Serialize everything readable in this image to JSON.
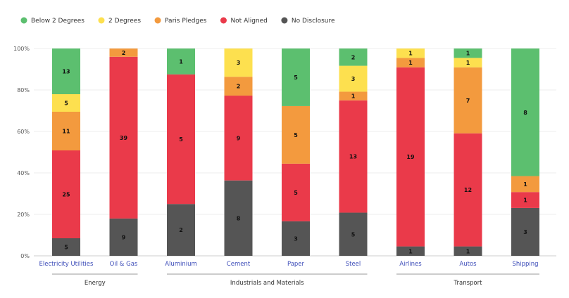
{
  "chart_data": {
    "type": "bar",
    "stacked": true,
    "normalized": true,
    "title": "",
    "xlabel": "",
    "ylabel": "",
    "ylim": [
      0,
      100
    ],
    "yticks": [
      "0%",
      "20%",
      "40%",
      "60%",
      "80%",
      "100%"
    ],
    "legend_position": "top-left",
    "categories": [
      "Electricity Utilities",
      "Oil & Gas",
      "Aluminium",
      "Cement",
      "Paper",
      "Steel",
      "Airlines",
      "Autos",
      "Shipping"
    ],
    "groups": [
      {
        "label": "Energy",
        "from": 0,
        "to": 1
      },
      {
        "label": "Industrials and Materials",
        "from": 2,
        "to": 5
      },
      {
        "label": "Transport",
        "from": 6,
        "to": 8
      }
    ],
    "series": [
      {
        "name": "No Disclosure",
        "color": "#555555",
        "values": [
          5,
          9,
          2,
          8,
          3,
          5,
          1,
          1,
          3
        ]
      },
      {
        "name": "Not Aligned",
        "color": "#ea3a4a",
        "values": [
          25,
          39,
          5,
          9,
          5,
          13,
          19,
          12,
          1
        ]
      },
      {
        "name": "Paris Pledges",
        "color": "#f39a3e",
        "values": [
          11,
          2,
          0,
          2,
          5,
          1,
          1,
          7,
          1
        ]
      },
      {
        "name": "2 Degrees",
        "color": "#fde04f",
        "values": [
          5,
          0,
          0,
          3,
          0,
          3,
          1,
          1,
          0
        ]
      },
      {
        "name": "Below 2 Degrees",
        "color": "#5cbf6f",
        "values": [
          13,
          0,
          1,
          0,
          5,
          2,
          0,
          1,
          8
        ]
      }
    ],
    "legend_order": [
      "Below 2 Degrees",
      "2 Degrees",
      "Paris Pledges",
      "Not Aligned",
      "No Disclosure"
    ]
  }
}
